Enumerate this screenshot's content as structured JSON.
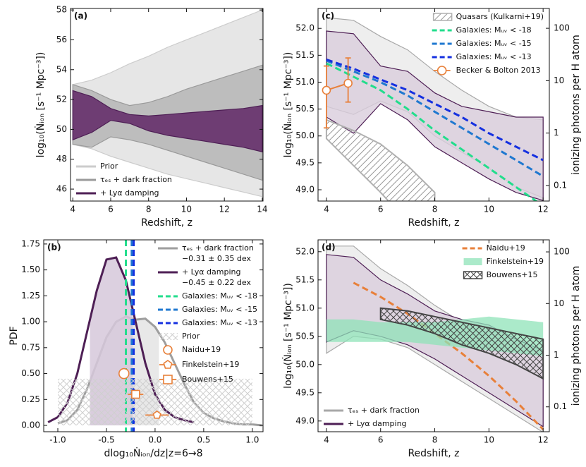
{
  "chart_data": [
    {
      "type": "line",
      "label": "(a)",
      "xlabel": "Redshift, z",
      "ylabel": "log₁₀(Ṅᵢₒₙ [s⁻¹ Mpc⁻³])",
      "xlim": [
        3.88,
        14.04
      ],
      "ylim": [
        45.2,
        58.1
      ],
      "xticks": [
        4,
        6,
        8,
        10,
        12,
        14
      ],
      "yticks": [
        46,
        48,
        50,
        52,
        54,
        56,
        58
      ],
      "legend": "lower left",
      "series": [
        {
          "name": "Prior",
          "kind": "band",
          "legend_symbol": "line",
          "color": "#e6e6e6",
          "edge": "#cccccc",
          "x": [
            4,
            5,
            6,
            7,
            8,
            9,
            10,
            11,
            12,
            13,
            14
          ],
          "upper": [
            53.0,
            53.3,
            53.8,
            54.4,
            54.9,
            55.5,
            56.0,
            56.5,
            57.0,
            57.5,
            58.0
          ],
          "lower": [
            49.0,
            48.7,
            48.2,
            47.8,
            47.4,
            47.0,
            46.7,
            46.4,
            46.1,
            45.8,
            45.5
          ]
        },
        {
          "name": "τₑₛ + dark fraction",
          "kind": "band",
          "legend_symbol": "line",
          "color": "#bdbdbd",
          "edge": "#9a9a9a",
          "x": [
            4,
            5,
            6,
            7,
            8,
            9,
            10,
            11,
            12,
            13,
            14
          ],
          "upper": [
            53.0,
            52.6,
            52.0,
            51.6,
            51.8,
            52.2,
            52.7,
            53.1,
            53.5,
            53.9,
            54.3
          ],
          "lower": [
            49.0,
            48.8,
            49.5,
            49.3,
            49.0,
            48.6,
            48.2,
            47.8,
            47.4,
            47.0,
            46.6
          ]
        },
        {
          "name": "+ Lyα damping",
          "kind": "band",
          "legend_symbol": "line",
          "color": "#6e3d73",
          "edge": "#4e1f55",
          "x": [
            4,
            5,
            6,
            7,
            8,
            9,
            10,
            11,
            12,
            13,
            14
          ],
          "upper": [
            52.6,
            52.2,
            51.4,
            51.0,
            50.9,
            51.0,
            51.1,
            51.2,
            51.3,
            51.4,
            51.6
          ],
          "lower": [
            49.3,
            49.8,
            50.6,
            50.4,
            49.9,
            49.6,
            49.4,
            49.2,
            49.0,
            48.8,
            48.5
          ]
        }
      ]
    },
    {
      "type": "line",
      "label": "(b)",
      "xlabel": "dlog₁₀Ṅᵢₒₙ/dz|z=6→8",
      "ylabel": "PDF",
      "xlim": [
        -1.145,
        1.11
      ],
      "ylim": [
        -0.061,
        1.79
      ],
      "xticks": [
        {
          "value": -1.0,
          "label": "-1.0"
        },
        {
          "value": -0.5,
          "label": "-0.5"
        },
        {
          "value": 0.0,
          "label": "0.0"
        },
        {
          "value": 0.5,
          "label": "0.5"
        },
        {
          "value": 1.0,
          "label": "1.0"
        }
      ],
      "yticks": [
        {
          "value": 0,
          "label": "0.00"
        },
        {
          "value": 0.25,
          "label": "0.25"
        },
        {
          "value": 0.5,
          "label": "0.50"
        },
        {
          "value": 0.75,
          "label": "0.75"
        },
        {
          "value": 1.0,
          "label": "1.00"
        },
        {
          "value": 1.25,
          "label": "1.25"
        },
        {
          "value": 1.5,
          "label": "1.50"
        },
        {
          "value": 1.75,
          "label": "1.75"
        }
      ],
      "legend": "upper right",
      "series": [
        {
          "name": "τₑₛ + dark fraction",
          "note": "−0.31 ± 0.35 dex",
          "kind": "line",
          "color": "#9e9e9e",
          "fill": "#e4e4e4",
          "fill_range": [
            -0.66,
            0.04
          ],
          "x": [
            -1.0,
            -0.9,
            -0.8,
            -0.7,
            -0.6,
            -0.5,
            -0.4,
            -0.3,
            -0.2,
            -0.1,
            0.0,
            0.1,
            0.2,
            0.3,
            0.4,
            0.5,
            0.6,
            0.7,
            0.8,
            0.9,
            1.0,
            1.1
          ],
          "values": [
            0.02,
            0.05,
            0.15,
            0.35,
            0.6,
            0.85,
            1.0,
            1.05,
            1.02,
            1.03,
            0.95,
            0.8,
            0.6,
            0.4,
            0.22,
            0.12,
            0.07,
            0.04,
            0.02,
            0.01,
            0.01,
            0.0
          ]
        },
        {
          "name": "+ Lyα damping",
          "note": "−0.45 ± 0.22 dex",
          "kind": "line",
          "color": "#4e1f55",
          "fill": "#d6c8da",
          "fill_range": [
            -0.67,
            -0.23
          ],
          "x": [
            -1.1,
            -1.0,
            -0.9,
            -0.8,
            -0.7,
            -0.6,
            -0.5,
            -0.4,
            -0.3,
            -0.2,
            -0.1,
            0.0,
            0.1,
            0.2,
            0.3,
            0.4
          ],
          "values": [
            0.03,
            0.08,
            0.22,
            0.5,
            0.9,
            1.3,
            1.6,
            1.62,
            1.4,
            1.0,
            0.6,
            0.3,
            0.15,
            0.08,
            0.05,
            0.03
          ]
        },
        {
          "name": "Galaxies: Mᵤᵥ < -18",
          "kind": "vline",
          "color": "#22dd8c",
          "dash": true,
          "x": -0.3
        },
        {
          "name": "Galaxies: Mᵤᵥ < -15",
          "kind": "vline",
          "color": "#1f78d0",
          "dash": true,
          "x": -0.24
        },
        {
          "name": "Galaxies: Mᵤᵥ < -13",
          "kind": "vline",
          "color": "#1530e0",
          "dash": true,
          "x": -0.22
        },
        {
          "name": "Prior",
          "kind": "band",
          "legend_symbol": "patch",
          "color": "#cfcfcf",
          "hatch": "cross",
          "x": [
            -1.0,
            1.0
          ],
          "upper": [
            0.45,
            0.45
          ],
          "lower": [
            0,
            0
          ]
        },
        {
          "name": "Naidu+19",
          "kind": "points",
          "marker": "circle",
          "color": "#e8803a",
          "x": [
            -0.32
          ],
          "values": [
            0.5
          ]
        },
        {
          "name": "Finkelstein+19",
          "kind": "points",
          "marker": "pentagon",
          "color": "#e8803a",
          "x": [
            0.02
          ],
          "values": [
            0.1
          ],
          "xerr": [
            0.12
          ]
        },
        {
          "name": "Bouwens+15",
          "kind": "points",
          "marker": "square",
          "color": "#e8803a",
          "x": [
            -0.2
          ],
          "values": [
            0.3
          ],
          "xerr": [
            0.08
          ]
        }
      ]
    },
    {
      "type": "line",
      "label": "(c)",
      "xlabel": "Redshift, z",
      "ylabel": "log₁₀(Ṅᵢₒₙ [s⁻¹ Mpc⁻³])",
      "y2label": "ionizing photons per H atom",
      "xlim": [
        3.69,
        12.23
      ],
      "ylim": [
        48.79,
        52.37
      ],
      "y2lim": [
        0.0504,
        239
      ],
      "y2log": true,
      "xticks": [
        4,
        6,
        8,
        10,
        12
      ],
      "yticks": [
        {
          "value": 49.0,
          "label": "49.0"
        },
        {
          "value": 49.5,
          "label": "49.5"
        },
        {
          "value": 50.0,
          "label": "50.0"
        },
        {
          "value": 50.5,
          "label": "50.5"
        },
        {
          "value": 51.0,
          "label": "51.0"
        },
        {
          "value": 51.5,
          "label": "51.5"
        },
        {
          "value": 52.0,
          "label": "52.0"
        }
      ],
      "y2ticks": [
        0.1,
        1,
        10,
        100
      ],
      "legend": "upper right",
      "series": [
        {
          "kind": "band",
          "color": "#eeeeee",
          "edge": "#a8a8a8",
          "x": [
            4,
            5,
            6,
            7,
            8,
            9,
            10,
            11,
            12
          ],
          "upper": [
            52.2,
            52.15,
            51.85,
            51.6,
            51.2,
            50.85,
            50.55,
            50.35,
            50.3
          ],
          "lower": [
            50.55,
            50.4,
            50.65,
            50.45,
            50.0,
            49.7,
            49.4,
            49.05,
            48.85
          ]
        },
        {
          "kind": "band",
          "color": "#d9cddc",
          "opacity": 0.8,
          "edge": "#4e1f55",
          "x": [
            4,
            5,
            6,
            7,
            8,
            9,
            10,
            11,
            12
          ],
          "upper": [
            51.95,
            51.9,
            51.3,
            51.2,
            50.8,
            50.55,
            50.45,
            50.35,
            50.35
          ],
          "lower": [
            50.35,
            50.05,
            50.6,
            50.3,
            49.8,
            49.5,
            49.2,
            48.95,
            48.8
          ]
        },
        {
          "name": "Quasars (Kulkarni+19)",
          "kind": "band",
          "legend_symbol": "patch",
          "color": "#9a9a9a",
          "edge": "#b0b0b0",
          "hatch": "diag",
          "x": [
            4,
            5,
            6,
            7,
            8
          ],
          "upper": [
            50.3,
            50.1,
            49.85,
            49.45,
            48.95
          ],
          "lower": [
            49.95,
            49.45,
            48.95,
            48.4,
            47.9
          ]
        },
        {
          "name": "Galaxies: Mᵤᵥ < -18",
          "kind": "line",
          "color": "#22dd8c",
          "dash": true,
          "x": [
            4,
            5,
            6,
            7,
            8,
            9,
            10,
            11,
            12
          ],
          "values": [
            51.35,
            51.1,
            50.85,
            50.5,
            50.1,
            49.75,
            49.4,
            49.05,
            48.7
          ]
        },
        {
          "name": "Galaxies: Mᵤᵥ < -15",
          "kind": "line",
          "color": "#1f78d0",
          "dash": true,
          "x": [
            4,
            5,
            6,
            7,
            8,
            9,
            10,
            11,
            12
          ],
          "values": [
            51.4,
            51.2,
            51.0,
            50.75,
            50.45,
            50.15,
            49.85,
            49.55,
            49.25
          ]
        },
        {
          "name": "Galaxies: Mᵤᵥ < -13",
          "kind": "line",
          "color": "#1530e0",
          "dash": true,
          "x": [
            4,
            5,
            6,
            7,
            8,
            9,
            10,
            11,
            12
          ],
          "values": [
            51.42,
            51.25,
            51.05,
            50.85,
            50.6,
            50.35,
            50.05,
            49.8,
            49.55
          ]
        },
        {
          "name": "Becker & Bolton 2013",
          "kind": "points",
          "marker": "circle",
          "connect": true,
          "color": "#e8803a",
          "x": [
            4.0,
            4.8
          ],
          "values": [
            50.85,
            50.98
          ],
          "yerr_lower": [
            0.7,
            0.35
          ],
          "yerr_upper": [
            0.45,
            0.47
          ]
        }
      ]
    },
    {
      "type": "line",
      "label": "(d)",
      "xlabel": "Redshift, z",
      "ylabel": "log₁₀(Ṅᵢₒₙ [s⁻¹ Mpc⁻³])",
      "y2label": "ionizing photons per H atom",
      "xlim": [
        3.69,
        12.23
      ],
      "ylim": [
        48.81,
        52.21
      ],
      "y2lim": [
        0.033,
        171
      ],
      "y2log": true,
      "xticks": [
        4,
        6,
        8,
        10,
        12
      ],
      "yticks": [
        {
          "value": 49.0,
          "label": "49.0"
        },
        {
          "value": 49.5,
          "label": "49.5"
        },
        {
          "value": 50.0,
          "label": "50.0"
        },
        {
          "value": 50.5,
          "label": "50.5"
        },
        {
          "value": 51.0,
          "label": "51.0"
        },
        {
          "value": 51.5,
          "label": "51.5"
        },
        {
          "value": 52.0,
          "label": "52.0"
        }
      ],
      "y2ticks": [
        0.1,
        1,
        10,
        100
      ],
      "legend": "upper right",
      "series": [
        {
          "name": "τₑₛ + dark fraction",
          "legend": "lower left",
          "kind": "band",
          "legend_symbol": "line",
          "color": "#eeeeee",
          "edge": "#a8a8a8",
          "x": [
            4,
            5,
            6,
            7,
            8,
            9,
            10,
            11,
            12
          ],
          "upper": [
            52.1,
            52.1,
            51.7,
            51.4,
            51.05,
            50.75,
            50.45,
            50.15,
            49.9
          ],
          "lower": [
            50.2,
            50.5,
            50.45,
            50.3,
            50.0,
            49.7,
            49.4,
            49.1,
            48.8
          ]
        },
        {
          "name": "+ Lyα damping",
          "legend": "lower left",
          "kind": "band",
          "legend_symbol": "line",
          "color": "#d9cddc",
          "opacity": 0.8,
          "edge": "#4e1f55",
          "x": [
            4,
            5,
            6,
            7,
            8,
            9,
            10,
            11,
            12
          ],
          "upper": [
            51.95,
            51.9,
            51.5,
            51.25,
            50.95,
            50.8,
            50.7,
            50.45,
            50.25
          ],
          "lower": [
            50.4,
            50.6,
            50.5,
            50.35,
            50.1,
            49.8,
            49.5,
            49.2,
            48.9
          ]
        },
        {
          "name": "Naidu+19",
          "kind": "line",
          "color": "#e8803a",
          "dash": true,
          "x": [
            5,
            6,
            7,
            8,
            9,
            10,
            11,
            12
          ],
          "values": [
            51.45,
            51.2,
            50.9,
            50.55,
            50.2,
            49.8,
            49.35,
            48.85
          ]
        },
        {
          "name": "Finkelstein+19",
          "kind": "band",
          "legend_symbol": "patch",
          "color": "#8fe3b8",
          "opacity": 0.75,
          "x": [
            4,
            5,
            6,
            7,
            8,
            9,
            10,
            11,
            12
          ],
          "upper": [
            50.8,
            50.8,
            50.75,
            50.75,
            50.75,
            50.8,
            50.85,
            50.8,
            50.75
          ],
          "lower": [
            50.4,
            50.4,
            50.4,
            50.4,
            50.35,
            50.3,
            50.25,
            50.2,
            50.15
          ]
        },
        {
          "name": "Bouwens+15",
          "kind": "band",
          "legend_symbol": "patch",
          "color": "#444444",
          "edge": "#444444",
          "hatch": "cross",
          "x": [
            6,
            7,
            8,
            9,
            10,
            11,
            12
          ],
          "upper": [
            51.0,
            50.95,
            50.85,
            50.75,
            50.65,
            50.55,
            50.45
          ],
          "lower": [
            50.8,
            50.7,
            50.55,
            50.35,
            50.2,
            50.0,
            49.75
          ]
        }
      ]
    }
  ]
}
